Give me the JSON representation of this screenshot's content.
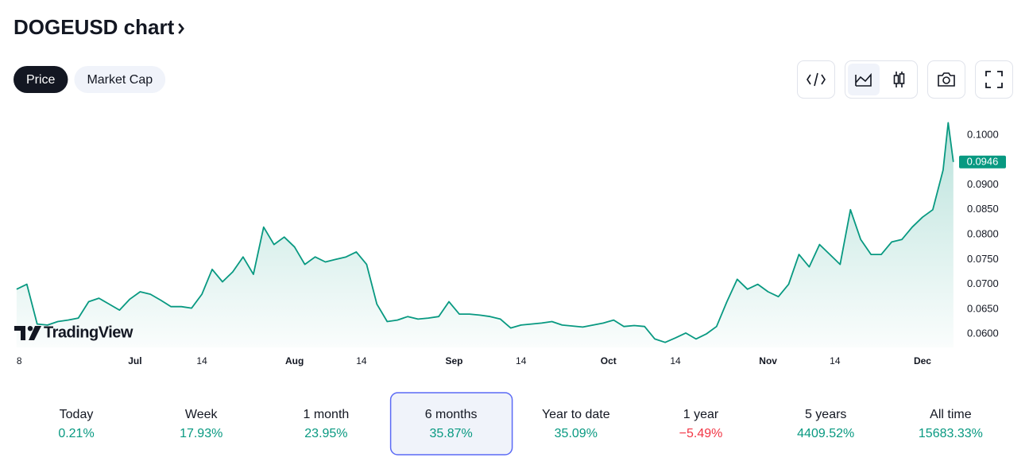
{
  "header": {
    "title": "DOGEUSD chart"
  },
  "tabs": {
    "items": [
      "Price",
      "Market Cap"
    ],
    "selected": 0
  },
  "chart_data": {
    "type": "line",
    "color": "#089981",
    "watermark": "TradingView",
    "x": [
      0,
      2,
      4,
      6,
      8,
      10,
      12,
      14,
      16,
      18,
      20,
      22,
      24,
      26,
      28,
      30,
      32,
      34,
      36,
      38,
      40,
      42,
      44,
      46,
      48,
      50,
      52,
      54,
      56,
      58,
      60,
      62,
      64,
      66,
      68,
      70,
      72,
      74,
      76,
      78,
      80,
      82,
      84,
      86,
      88,
      90,
      92,
      94,
      96,
      98,
      100,
      102,
      104,
      106,
      108,
      110,
      112,
      114,
      116,
      118,
      120,
      122,
      124,
      126,
      128,
      130,
      132,
      134,
      136,
      138,
      140,
      142,
      144,
      146,
      148,
      150,
      152,
      154,
      156,
      158,
      160,
      162,
      164,
      166,
      168,
      170,
      172,
      174,
      176,
      178,
      180,
      181,
      182
    ],
    "values": [
      0.069,
      0.07,
      0.062,
      0.0618,
      0.0625,
      0.0628,
      0.0632,
      0.0665,
      0.0672,
      0.066,
      0.0648,
      0.067,
      0.0685,
      0.068,
      0.0668,
      0.0655,
      0.0655,
      0.0652,
      0.068,
      0.073,
      0.0705,
      0.0725,
      0.0755,
      0.072,
      0.0815,
      0.078,
      0.0795,
      0.0775,
      0.074,
      0.0755,
      0.0745,
      0.075,
      0.0755,
      0.0765,
      0.074,
      0.066,
      0.0625,
      0.0628,
      0.0635,
      0.063,
      0.0632,
      0.0635,
      0.0665,
      0.064,
      0.064,
      0.0638,
      0.0635,
      0.063,
      0.0612,
      0.0618,
      0.062,
      0.0622,
      0.0625,
      0.0618,
      0.0616,
      0.0614,
      0.0618,
      0.0622,
      0.0628,
      0.0615,
      0.0617,
      0.0615,
      0.059,
      0.0583,
      0.0592,
      0.0602,
      0.059,
      0.06,
      0.0615,
      0.0665,
      0.071,
      0.069,
      0.07,
      0.0685,
      0.0675,
      0.07,
      0.076,
      0.0735,
      0.078,
      0.076,
      0.074,
      0.085,
      0.079,
      0.076,
      0.076,
      0.0785,
      0.079,
      0.0815,
      0.0835,
      0.085,
      0.093,
      0.1025,
      0.0946
    ],
    "price_label": "0.0946",
    "xlim": [
      -0.6,
      182.8
    ],
    "xticks": [
      {
        "value": 0,
        "label": "8"
      },
      {
        "value": 23,
        "label": "Jul"
      },
      {
        "value": 36,
        "label": "14"
      },
      {
        "value": 54,
        "label": "Aug"
      },
      {
        "value": 67,
        "label": "14"
      },
      {
        "value": 85,
        "label": "Sep"
      },
      {
        "value": 98,
        "label": "14"
      },
      {
        "value": 115,
        "label": "Oct"
      },
      {
        "value": 128,
        "label": "14"
      },
      {
        "value": 146,
        "label": "Nov"
      },
      {
        "value": 159,
        "label": "14"
      },
      {
        "value": 176,
        "label": "Dec"
      }
    ],
    "ylim": [
      0.0573,
      0.104
    ],
    "yticks": [
      {
        "value": 0.06,
        "label": "0.0600"
      },
      {
        "value": 0.065,
        "label": "0.0650"
      },
      {
        "value": 0.07,
        "label": "0.0700"
      },
      {
        "value": 0.075,
        "label": "0.0750"
      },
      {
        "value": 0.08,
        "label": "0.0800"
      },
      {
        "value": 0.085,
        "label": "0.0850"
      },
      {
        "value": 0.09,
        "label": "0.0900"
      },
      {
        "value": 0.1,
        "label": "0.1000"
      }
    ]
  },
  "periods": {
    "selected": 3,
    "items": [
      {
        "label": "Today",
        "change": "0.21%",
        "color": "#089981"
      },
      {
        "label": "Week",
        "change": "17.93%",
        "color": "#089981"
      },
      {
        "label": "1 month",
        "change": "23.95%",
        "color": "#089981"
      },
      {
        "label": "6 months",
        "change": "35.87%",
        "color": "#089981"
      },
      {
        "label": "Year to date",
        "change": "35.09%",
        "color": "#089981"
      },
      {
        "label": "1 year",
        "change": "−5.49%",
        "color": "#f23645"
      },
      {
        "label": "5 years",
        "change": "4409.52%",
        "color": "#089981"
      },
      {
        "label": "All time",
        "change": "15683.33%",
        "color": "#089981"
      }
    ]
  }
}
